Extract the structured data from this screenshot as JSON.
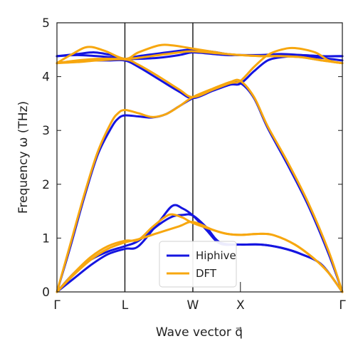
{
  "chart_data": {
    "type": "line",
    "title": "",
    "xlabel": "Wave vector q⃗",
    "ylabel": "Frequency ω (THz)",
    "ylim": [
      0,
      5
    ],
    "y_ticks": [
      "0",
      "1",
      "2",
      "3",
      "4",
      "5"
    ],
    "x_ticks": [
      "Γ",
      "L",
      "W",
      "X",
      "Γ"
    ],
    "x_tick_positions": [
      0,
      1,
      2,
      2.7,
      4.2
    ],
    "vertical_lines_at": [
      1,
      2
    ],
    "grid": false,
    "legend": {
      "position": "bottom-center"
    },
    "colors": {
      "Hiphive": "#1515e0",
      "DFT": "#f7a70f"
    },
    "series": [
      {
        "name": "Hiphive",
        "bands": [
          [
            [
              0,
              0
            ],
            [
              0.25,
              0.25
            ],
            [
              0.5,
              0.5
            ],
            [
              0.75,
              0.7
            ],
            [
              1,
              0.8
            ],
            [
              1.2,
              0.85
            ],
            [
              1.5,
              1.3
            ],
            [
              1.7,
              1.6
            ],
            [
              1.85,
              1.55
            ],
            [
              2,
              1.42
            ],
            [
              2.2,
              1.15
            ],
            [
              2.4,
              0.9
            ],
            [
              2.7,
              0.88
            ],
            [
              3,
              0.88
            ],
            [
              3.3,
              0.82
            ],
            [
              3.6,
              0.7
            ],
            [
              3.9,
              0.5
            ],
            [
              4.2,
              0
            ]
          ],
          [
            [
              0,
              0
            ],
            [
              0.25,
              0.35
            ],
            [
              0.5,
              0.6
            ],
            [
              0.75,
              0.75
            ],
            [
              1,
              0.85
            ],
            [
              1.2,
              0.95
            ],
            [
              1.5,
              1.25
            ],
            [
              1.7,
              1.4
            ],
            [
              1.85,
              1.43
            ],
            [
              2,
              1.42
            ],
            [
              2.2,
              1.2
            ],
            [
              2.4,
              0.92
            ],
            [
              2.7,
              0.88
            ],
            [
              3,
              0.88
            ],
            [
              3.3,
              0.82
            ],
            [
              3.6,
              0.7
            ],
            [
              3.9,
              0.5
            ],
            [
              4.2,
              0
            ]
          ],
          [
            [
              0,
              0
            ],
            [
              0.2,
              0.85
            ],
            [
              0.4,
              1.75
            ],
            [
              0.6,
              2.55
            ],
            [
              0.8,
              3.05
            ],
            [
              0.9,
              3.22
            ],
            [
              1,
              3.28
            ],
            [
              1.2,
              3.26
            ],
            [
              1.4,
              3.24
            ],
            [
              1.6,
              3.3
            ],
            [
              1.8,
              3.45
            ],
            [
              2,
              3.6
            ],
            [
              2.3,
              3.75
            ],
            [
              2.55,
              3.86
            ],
            [
              2.7,
              3.88
            ],
            [
              2.9,
              3.6
            ],
            [
              3.1,
              3.05
            ],
            [
              3.4,
              2.35
            ],
            [
              3.7,
              1.6
            ],
            [
              4,
              0.7
            ],
            [
              4.2,
              0
            ]
          ],
          [
            [
              0,
              4.25
            ],
            [
              0.2,
              4.28
            ],
            [
              0.5,
              4.3
            ],
            [
              0.75,
              4.3
            ],
            [
              1,
              4.3
            ],
            [
              1.2,
              4.18
            ],
            [
              1.5,
              3.95
            ],
            [
              1.8,
              3.72
            ],
            [
              2,
              3.6
            ],
            [
              2.3,
              3.74
            ],
            [
              2.55,
              3.85
            ],
            [
              2.7,
              3.87
            ],
            [
              2.9,
              4.1
            ],
            [
              3.1,
              4.3
            ],
            [
              3.3,
              4.36
            ],
            [
              3.5,
              4.38
            ],
            [
              3.8,
              4.36
            ],
            [
              4.2,
              4.3
            ]
          ],
          [
            [
              0,
              4.38
            ],
            [
              0.3,
              4.42
            ],
            [
              0.55,
              4.45
            ],
            [
              0.8,
              4.4
            ],
            [
              1,
              4.33
            ],
            [
              1.2,
              4.38
            ],
            [
              1.5,
              4.43
            ],
            [
              1.8,
              4.48
            ],
            [
              2,
              4.5
            ],
            [
              2.3,
              4.46
            ],
            [
              2.5,
              4.42
            ],
            [
              2.7,
              4.4
            ],
            [
              3,
              4.4
            ],
            [
              3.3,
              4.42
            ],
            [
              3.6,
              4.4
            ],
            [
              3.9,
              4.38
            ],
            [
              4.2,
              4.38
            ]
          ],
          [
            [
              0,
              4.38
            ],
            [
              0.3,
              4.4
            ],
            [
              0.6,
              4.38
            ],
            [
              0.85,
              4.35
            ],
            [
              1,
              4.33
            ],
            [
              1.2,
              4.33
            ],
            [
              1.5,
              4.35
            ],
            [
              1.8,
              4.4
            ],
            [
              2,
              4.45
            ],
            [
              2.3,
              4.42
            ],
            [
              2.5,
              4.4
            ],
            [
              2.7,
              4.4
            ],
            [
              3,
              4.4
            ],
            [
              3.3,
              4.4
            ],
            [
              3.6,
              4.4
            ],
            [
              3.9,
              4.38
            ],
            [
              4.2,
              4.38
            ]
          ]
        ]
      },
      {
        "name": "DFT",
        "bands": [
          [
            [
              0,
              0
            ],
            [
              0.25,
              0.35
            ],
            [
              0.5,
              0.65
            ],
            [
              0.75,
              0.85
            ],
            [
              1,
              0.95
            ],
            [
              1.2,
              0.97
            ],
            [
              1.4,
              1.2
            ],
            [
              1.6,
              1.4
            ],
            [
              1.7,
              1.44
            ],
            [
              1.85,
              1.38
            ],
            [
              2,
              1.28
            ],
            [
              2.3,
              1.15
            ],
            [
              2.5,
              1.08
            ],
            [
              2.7,
              1.06
            ],
            [
              3,
              1.08
            ],
            [
              3.2,
              1.05
            ],
            [
              3.5,
              0.88
            ],
            [
              3.8,
              0.6
            ],
            [
              4,
              0.35
            ],
            [
              4.2,
              0
            ]
          ],
          [
            [
              0,
              0
            ],
            [
              0.25,
              0.32
            ],
            [
              0.5,
              0.6
            ],
            [
              0.75,
              0.8
            ],
            [
              1,
              0.92
            ],
            [
              1.2,
              0.98
            ],
            [
              1.5,
              1.1
            ],
            [
              1.8,
              1.22
            ],
            [
              2,
              1.3
            ],
            [
              2.3,
              1.15
            ],
            [
              2.5,
              1.08
            ],
            [
              2.7,
              1.06
            ],
            [
              3,
              1.08
            ],
            [
              3.2,
              1.05
            ],
            [
              3.5,
              0.88
            ],
            [
              3.8,
              0.6
            ],
            [
              4,
              0.35
            ],
            [
              4.2,
              0
            ]
          ],
          [
            [
              0,
              0
            ],
            [
              0.2,
              0.9
            ],
            [
              0.4,
              1.8
            ],
            [
              0.6,
              2.6
            ],
            [
              0.8,
              3.15
            ],
            [
              0.9,
              3.32
            ],
            [
              1,
              3.38
            ],
            [
              1.2,
              3.32
            ],
            [
              1.4,
              3.25
            ],
            [
              1.6,
              3.3
            ],
            [
              1.8,
              3.45
            ],
            [
              2,
              3.62
            ],
            [
              2.3,
              3.78
            ],
            [
              2.55,
              3.9
            ],
            [
              2.7,
              3.92
            ],
            [
              2.9,
              3.62
            ],
            [
              3.1,
              3.08
            ],
            [
              3.4,
              2.4
            ],
            [
              3.7,
              1.65
            ],
            [
              4,
              0.75
            ],
            [
              4.2,
              0
            ]
          ],
          [
            [
              0,
              4.25
            ],
            [
              0.3,
              4.27
            ],
            [
              0.6,
              4.3
            ],
            [
              1,
              4.32
            ],
            [
              1.2,
              4.22
            ],
            [
              1.5,
              4.0
            ],
            [
              1.8,
              3.76
            ],
            [
              2,
              3.62
            ],
            [
              2.3,
              3.76
            ],
            [
              2.55,
              3.88
            ],
            [
              2.7,
              3.92
            ],
            [
              2.9,
              4.18
            ],
            [
              3.1,
              4.4
            ],
            [
              3.3,
              4.5
            ],
            [
              3.5,
              4.53
            ],
            [
              3.8,
              4.45
            ],
            [
              4,
              4.3
            ],
            [
              4.2,
              4.25
            ]
          ],
          [
            [
              0,
              4.25
            ],
            [
              0.2,
              4.4
            ],
            [
              0.45,
              4.55
            ],
            [
              0.7,
              4.48
            ],
            [
              1,
              4.33
            ],
            [
              1.2,
              4.45
            ],
            [
              1.5,
              4.58
            ],
            [
              1.7,
              4.58
            ],
            [
              2,
              4.52
            ],
            [
              2.3,
              4.46
            ],
            [
              2.5,
              4.42
            ],
            [
              2.7,
              4.4
            ],
            [
              3,
              4.38
            ],
            [
              3.3,
              4.38
            ],
            [
              3.6,
              4.36
            ],
            [
              3.9,
              4.3
            ],
            [
              4.2,
              4.25
            ]
          ],
          [
            [
              0,
              4.25
            ],
            [
              0.3,
              4.3
            ],
            [
              0.6,
              4.33
            ],
            [
              1,
              4.33
            ],
            [
              1.2,
              4.35
            ],
            [
              1.5,
              4.4
            ],
            [
              1.8,
              4.45
            ],
            [
              2,
              4.47
            ],
            [
              2.3,
              4.44
            ],
            [
              2.5,
              4.42
            ],
            [
              2.7,
              4.4
            ],
            [
              3,
              4.38
            ],
            [
              3.3,
              4.38
            ],
            [
              3.6,
              4.36
            ],
            [
              3.9,
              4.3
            ],
            [
              4.2,
              4.25
            ]
          ]
        ]
      }
    ]
  }
}
